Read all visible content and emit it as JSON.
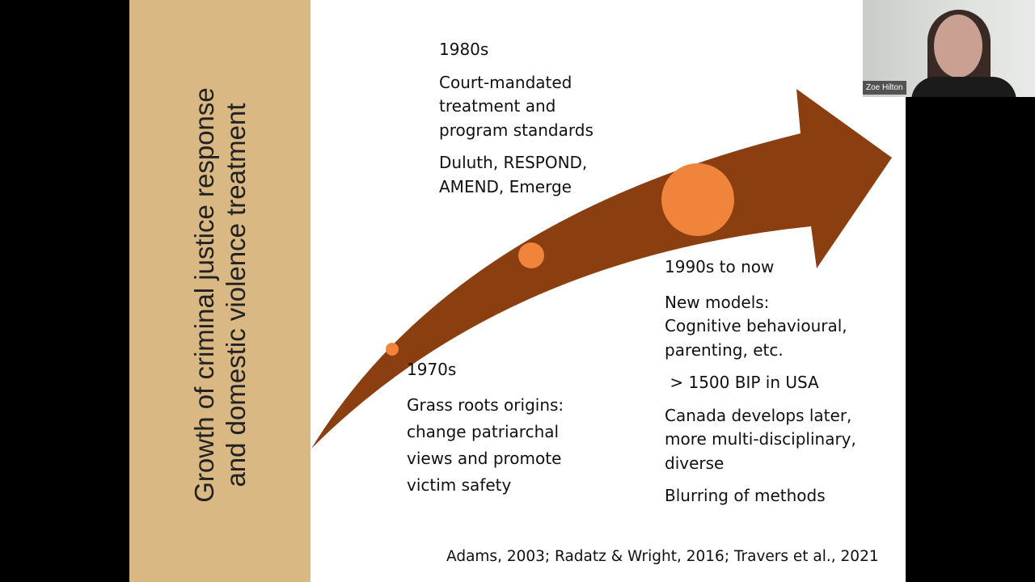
{
  "slide": {
    "title_lines": [
      "Growth of criminal justice response",
      "and domestic violence treatment"
    ],
    "colors": {
      "sidebar": "#d9b883",
      "arrow": "#8b3f10",
      "dots": "#f0843a"
    },
    "e1980": {
      "heading": "1980s",
      "lines1": [
        "Court-mandated",
        "treatment and",
        "program standards"
      ],
      "lines2": [
        "Duluth, RESPOND,",
        "AMEND, Emerge"
      ]
    },
    "e1970": {
      "heading": "1970s",
      "lines": [
        "Grass roots origins:",
        "change patriarchal",
        "views and promote",
        "victim safety"
      ]
    },
    "e1990": {
      "heading": "1990s to now",
      "lines1": [
        "New models:",
        "Cognitive behavioural,",
        "parenting, etc."
      ],
      "line2": " > 1500 BIP in USA",
      "lines3": [
        "Canada develops later,",
        "more multi-disciplinary,",
        "diverse"
      ],
      "line4": "Blurring of methods"
    },
    "citation": "Adams, 2003; Radatz & Wright, 2016; Travers et al., 2021"
  },
  "participant": {
    "name": "Zoe Hilton"
  }
}
